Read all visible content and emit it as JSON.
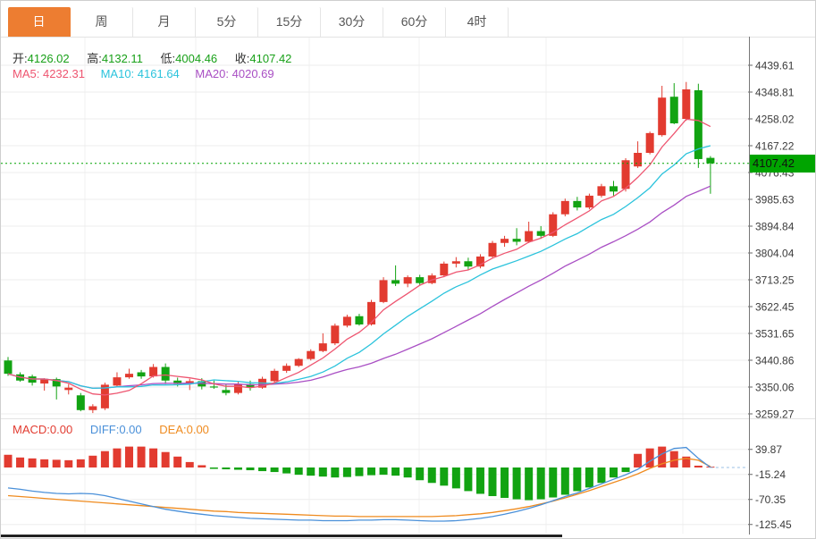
{
  "tabs": {
    "items": [
      {
        "label": "日",
        "active": true
      },
      {
        "label": "周",
        "active": false
      },
      {
        "label": "月",
        "active": false
      },
      {
        "label": "5分",
        "active": false
      },
      {
        "label": "15分",
        "active": false
      },
      {
        "label": "30分",
        "active": false
      },
      {
        "label": "60分",
        "active": false
      },
      {
        "label": "4时",
        "active": false
      }
    ]
  },
  "ohlc": {
    "open_label": "开:",
    "open": "4126.02",
    "high_label": "高:",
    "high": "4132.11",
    "low_label": "低:",
    "low": "4004.46",
    "close_label": "收:",
    "close": "4107.42"
  },
  "ma": {
    "ma5_label": "MA5:",
    "ma5": "4232.31",
    "ma10_label": "MA10:",
    "ma10": "4161.64",
    "ma20_label": "MA20:",
    "ma20": "4020.69"
  },
  "macd_header": {
    "macd_label": "MACD:",
    "macd": "0.00",
    "diff_label": "DIFF:",
    "diff": "0.00",
    "dea_label": "DEA:",
    "dea": "0.00"
  },
  "price_badge": {
    "value": "4107.42"
  },
  "colors": {
    "up": "#e23b30",
    "down": "#12a312",
    "ma5": "#ee5570",
    "ma10": "#2bc3dc",
    "ma20": "#a94fc4",
    "diff": "#4a90d9",
    "dea": "#ef8b1f",
    "accent_tab": "#ed7d31",
    "badge": "#00a400",
    "value_green": "#18a018"
  },
  "chart_data": {
    "type": "candlestick",
    "title": "",
    "legend": [
      "MA5",
      "MA10",
      "MA20"
    ],
    "main_panel": {
      "y_tick_labels": [
        "4439.61",
        "4348.81",
        "4258.02",
        "4167.22",
        "4076.43",
        "3985.63",
        "3894.84",
        "3804.04",
        "3713.25",
        "3622.45",
        "3531.65",
        "3440.86",
        "3350.06",
        "3259.27"
      ],
      "ylim": [
        3259.27,
        4439.61
      ],
      "last_price": 4107.42,
      "last_candle": {
        "open": 4126.02,
        "high": 4132.11,
        "low": 4004.46,
        "close": 4107.42
      },
      "ma_values": {
        "ma5": 4232.31,
        "ma10": 4161.64,
        "ma20": 4020.69
      },
      "ma_periods": [
        5,
        10,
        20
      ],
      "candles_ohlc": [
        [
          3440,
          3452,
          3388,
          3395
        ],
        [
          3393,
          3400,
          3368,
          3372
        ],
        [
          3386,
          3392,
          3355,
          3365
        ],
        [
          3362,
          3380,
          3338,
          3377
        ],
        [
          3377,
          3382,
          3308,
          3352
        ],
        [
          3340,
          3360,
          3325,
          3348
        ],
        [
          3322,
          3330,
          3268,
          3272
        ],
        [
          3272,
          3292,
          3262,
          3285
        ],
        [
          3278,
          3365,
          3272,
          3358
        ],
        [
          3355,
          3400,
          3350,
          3383
        ],
        [
          3383,
          3412,
          3378,
          3395
        ],
        [
          3400,
          3408,
          3378,
          3386
        ],
        [
          3386,
          3428,
          3382,
          3418
        ],
        [
          3418,
          3430,
          3360,
          3372
        ],
        [
          3372,
          3382,
          3352,
          3360
        ],
        [
          3360,
          3378,
          3340,
          3370
        ],
        [
          3370,
          3380,
          3342,
          3352
        ],
        [
          3352,
          3372,
          3344,
          3350
        ],
        [
          3340,
          3358,
          3322,
          3330
        ],
        [
          3330,
          3368,
          3325,
          3360
        ],
        [
          3360,
          3372,
          3338,
          3348
        ],
        [
          3348,
          3385,
          3344,
          3378
        ],
        [
          3370,
          3412,
          3365,
          3405
        ],
        [
          3405,
          3430,
          3398,
          3422
        ],
        [
          3422,
          3448,
          3418,
          3445
        ],
        [
          3445,
          3478,
          3440,
          3472
        ],
        [
          3472,
          3532,
          3468,
          3498
        ],
        [
          3498,
          3565,
          3492,
          3558
        ],
        [
          3558,
          3595,
          3552,
          3588
        ],
        [
          3590,
          3598,
          3558,
          3562
        ],
        [
          3562,
          3645,
          3558,
          3638
        ],
        [
          3638,
          3722,
          3634,
          3712
        ],
        [
          3712,
          3762,
          3692,
          3700
        ],
        [
          3700,
          3728,
          3688,
          3722
        ],
        [
          3722,
          3730,
          3694,
          3702
        ],
        [
          3702,
          3735,
          3698,
          3728
        ],
        [
          3728,
          3775,
          3722,
          3768
        ],
        [
          3768,
          3790,
          3755,
          3776
        ],
        [
          3776,
          3788,
          3748,
          3758
        ],
        [
          3758,
          3800,
          3752,
          3792
        ],
        [
          3792,
          3845,
          3788,
          3838
        ],
        [
          3838,
          3862,
          3825,
          3852
        ],
        [
          3852,
          3888,
          3830,
          3842
        ],
        [
          3842,
          3910,
          3838,
          3878
        ],
        [
          3878,
          3895,
          3852,
          3862
        ],
        [
          3862,
          3942,
          3858,
          3935
        ],
        [
          3935,
          3988,
          3928,
          3980
        ],
        [
          3980,
          3994,
          3948,
          3958
        ],
        [
          3958,
          4005,
          3952,
          3998
        ],
        [
          3998,
          4038,
          3992,
          4030
        ],
        [
          4030,
          4048,
          3998,
          4012
        ],
        [
          4021,
          4125,
          4012,
          4118
        ],
        [
          4097,
          4182,
          4092,
          4143
        ],
        [
          4143,
          4215,
          4138,
          4210
        ],
        [
          4203,
          4370,
          4198,
          4330
        ],
        [
          4333,
          4379,
          4240,
          4243
        ],
        [
          4258,
          4383,
          4252,
          4358
        ],
        [
          4355,
          4377,
          4092,
          4122
        ],
        [
          4126.02,
          4132.11,
          4004.46,
          4107.42
        ]
      ]
    },
    "macd_panel": {
      "y_tick_labels": [
        "39.87",
        "-15.24",
        "-70.35",
        "-125.45"
      ],
      "macd_value": 0.0,
      "diff_value": 0.0,
      "dea_value": 0.0,
      "histogram": [
        28,
        22,
        20,
        18,
        17,
        16,
        18,
        26,
        36,
        42,
        46,
        46,
        42,
        34,
        24,
        12,
        5,
        -3,
        -4,
        -5,
        -6,
        -8,
        -10,
        -13,
        -16,
        -18,
        -20,
        -22,
        -21,
        -19,
        -17,
        -16,
        -18,
        -22,
        -28,
        -34,
        -40,
        -46,
        -52,
        -58,
        -63,
        -67,
        -70,
        -72,
        -70,
        -66,
        -60,
        -52,
        -44,
        -34,
        -22,
        -10,
        30,
        42,
        46,
        36,
        24,
        4,
        0
      ],
      "diff_line": [
        -45,
        -48,
        -52,
        -55,
        -57,
        -58,
        -57,
        -58,
        -62,
        -68,
        -74,
        -80,
        -86,
        -92,
        -96,
        -100,
        -103,
        -106,
        -108,
        -110,
        -112,
        -113,
        -114,
        -115,
        -116,
        -116,
        -117,
        -117,
        -117,
        -116,
        -116,
        -115,
        -115,
        -116,
        -117,
        -118,
        -118,
        -117,
        -115,
        -112,
        -108,
        -103,
        -97,
        -90,
        -82,
        -73,
        -64,
        -56,
        -46,
        -36,
        -26,
        -16,
        -4,
        14,
        30,
        42,
        44,
        20,
        0
      ],
      "dea_line": [
        -62,
        -64,
        -66,
        -68,
        -70,
        -72,
        -74,
        -76,
        -78,
        -80,
        -82,
        -84,
        -86,
        -88,
        -90,
        -92,
        -94,
        -96,
        -97,
        -99,
        -100,
        -101,
        -102,
        -103,
        -104,
        -105,
        -106,
        -107,
        -107,
        -108,
        -108,
        -108,
        -108,
        -108,
        -108,
        -108,
        -107,
        -106,
        -104,
        -102,
        -99,
        -95,
        -91,
        -86,
        -80,
        -74,
        -67,
        -59,
        -51,
        -42,
        -33,
        -24,
        -14,
        -2,
        8,
        16,
        20,
        16,
        2
      ]
    }
  }
}
